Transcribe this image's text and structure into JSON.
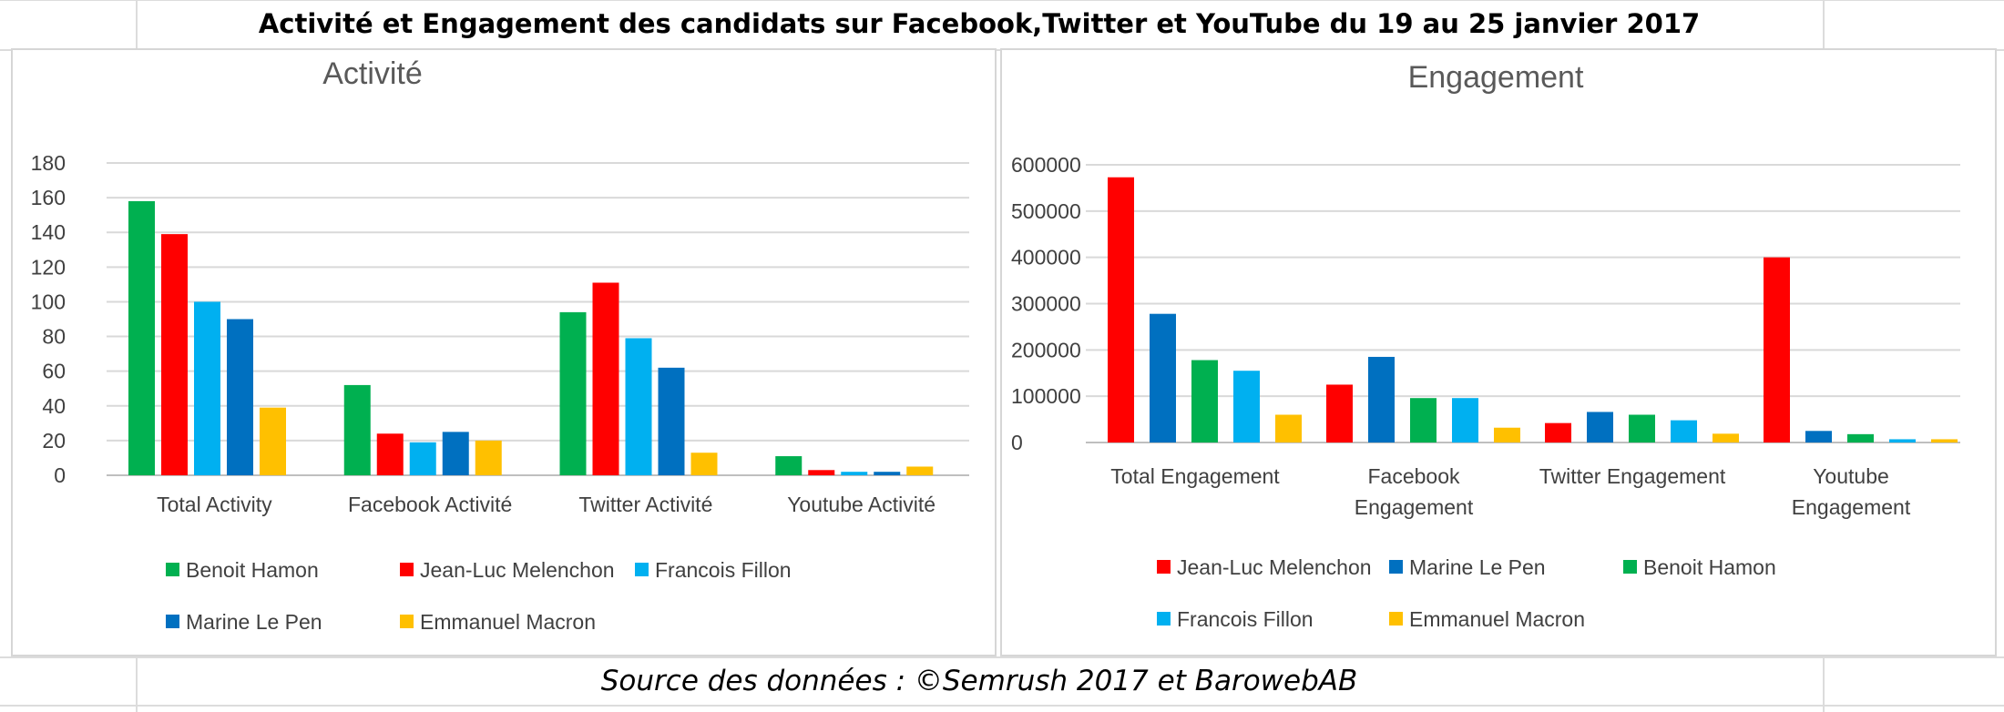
{
  "page": {
    "title": "Activité et Engagement des candidats sur Facebook,Twitter et YouTube du 19 au 25 janvier 2017",
    "source": "Source des données : ©Semrush 2017 et BarowebAB"
  },
  "colors": {
    "Benoit Hamon": "#00b050",
    "Jean-Luc Melenchon": "#ff0000",
    "Francois Fillon": "#00b0f0",
    "Marine Le Pen": "#0070c0",
    "Emmanuel Macron": "#ffc000"
  },
  "chart_data": [
    {
      "type": "bar",
      "title": "Activité",
      "categories": [
        [
          "Total Activity"
        ],
        [
          "Facebook Activité"
        ],
        [
          "Twitter Activité"
        ],
        [
          "Youtube Activité"
        ]
      ],
      "ylim": [
        0,
        180
      ],
      "yticks": [
        0,
        20,
        40,
        60,
        80,
        100,
        120,
        140,
        160,
        180
      ],
      "grid": true,
      "legend_position": "bottom",
      "series": [
        {
          "name": "Benoit Hamon",
          "values": [
            158,
            52,
            94,
            11
          ]
        },
        {
          "name": "Jean-Luc Melenchon",
          "values": [
            139,
            24,
            111,
            3
          ]
        },
        {
          "name": "Francois Fillon",
          "values": [
            100,
            19,
            79,
            2
          ]
        },
        {
          "name": "Marine Le Pen",
          "values": [
            90,
            25,
            62,
            2
          ]
        },
        {
          "name": "Emmanuel Macron",
          "values": [
            39,
            20,
            13,
            5
          ]
        }
      ]
    },
    {
      "type": "bar",
      "title": "Engagement",
      "categories": [
        [
          "Total Engagement"
        ],
        [
          "Facebook",
          "Engagement"
        ],
        [
          "Twitter Engagement"
        ],
        [
          "Youtube",
          "Engagement"
        ]
      ],
      "ylim": [
        0,
        600000
      ],
      "yticks": [
        0,
        100000,
        200000,
        300000,
        400000,
        500000,
        600000
      ],
      "grid": true,
      "legend_position": "bottom",
      "series": [
        {
          "name": "Jean-Luc Melenchon",
          "values": [
            573000,
            125000,
            42000,
            400000
          ]
        },
        {
          "name": "Marine Le Pen",
          "values": [
            278000,
            185000,
            66000,
            25000
          ]
        },
        {
          "name": "Benoit Hamon",
          "values": [
            178000,
            96000,
            60000,
            18000
          ]
        },
        {
          "name": "Francois Fillon",
          "values": [
            155000,
            96000,
            48000,
            7000
          ]
        },
        {
          "name": "Emmanuel Macron",
          "values": [
            60000,
            32000,
            19000,
            7000
          ]
        }
      ]
    }
  ]
}
